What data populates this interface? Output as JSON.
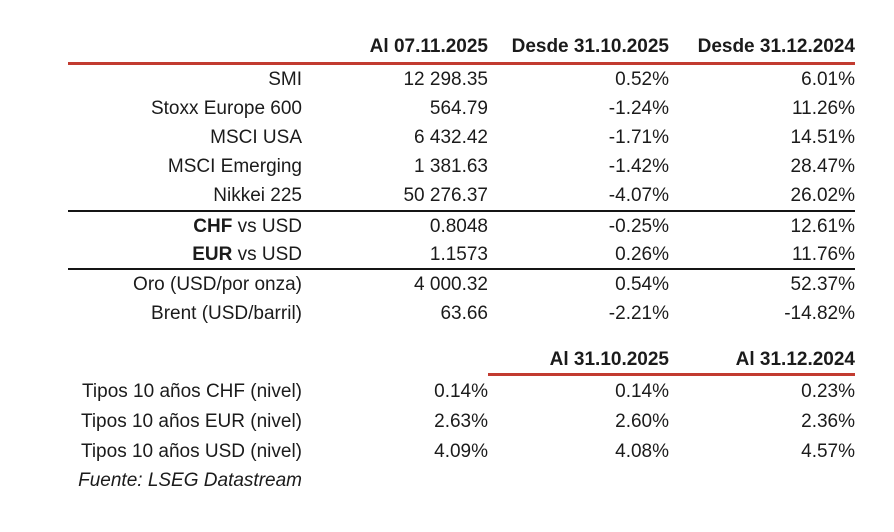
{
  "colors": {
    "accent_red": "#c23b30",
    "rule_black": "#151515",
    "text": "#1b1b1b"
  },
  "table1": {
    "headers": {
      "date_current": "Al 07.11.2025",
      "since_month": "Desde 31.10.2025",
      "since_year": "Desde 31.12.2024"
    },
    "indices": [
      {
        "label": "SMI",
        "level": "12 298.35",
        "since_month": "0.52%",
        "since_year": "6.01%"
      },
      {
        "label": "Stoxx Europe 600",
        "level": "564.79",
        "since_month": "-1.24%",
        "since_year": "11.26%"
      },
      {
        "label": "MSCI USA",
        "level": "6 432.42",
        "since_month": "-1.71%",
        "since_year": "14.51%"
      },
      {
        "label": "MSCI Emerging",
        "level": "1 381.63",
        "since_month": "-1.42%",
        "since_year": "28.47%"
      },
      {
        "label": "Nikkei 225",
        "level": "50 276.37",
        "since_month": "-4.07%",
        "since_year": "26.02%"
      }
    ],
    "currencies": [
      {
        "label_bold": "CHF",
        "label_rest": "vs USD",
        "level": "0.8048",
        "since_month": "-0.25%",
        "since_year": "12.61%"
      },
      {
        "label_bold": "EUR",
        "label_rest": "vs USD",
        "level": "1.1573",
        "since_month": "0.26%",
        "since_year": "11.76%"
      }
    ],
    "commodities": [
      {
        "label": "Oro (USD/por onza)",
        "level": "4 000.32",
        "since_month": "0.54%",
        "since_year": "52.37%"
      },
      {
        "label": "Brent (USD/barril)",
        "level": "63.66",
        "since_month": "-2.21%",
        "since_year": "-14.82%"
      }
    ]
  },
  "table2": {
    "headers": {
      "prev_month": "Al 31.10.2025",
      "prev_year": "Al 31.12.2024"
    },
    "rates": [
      {
        "label": "Tipos 10 años CHF (nivel)",
        "level": "0.14%",
        "prev_month": "0.14%",
        "prev_year": "0.23%"
      },
      {
        "label": "Tipos 10 años EUR (nivel)",
        "level": "2.63%",
        "prev_month": "2.60%",
        "prev_year": "2.36%"
      },
      {
        "label": "Tipos 10 años USD (nivel)",
        "level": "4.09%",
        "prev_month": "4.08%",
        "prev_year": "4.57%"
      }
    ]
  },
  "footer": {
    "source": "Fuente: LSEG Datastream"
  }
}
